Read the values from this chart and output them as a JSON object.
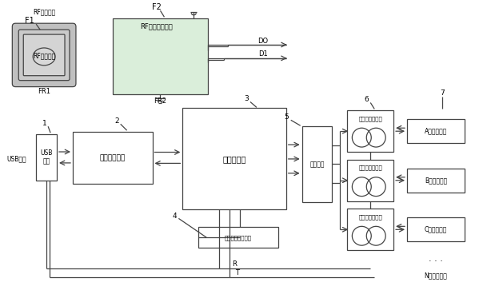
{
  "bg_color": "#ffffff",
  "line_color": "#444444",
  "box_fill": "#ffffff",
  "rf_module_fill": "#daeeda",
  "font_size": 6.5,
  "small_font": 6.0,
  "components": {
    "F1_label": "F1",
    "F1_sub": "RF射频芯片",
    "F1_id": "FR1",
    "F2_label": "F2",
    "F2_sub": "RF射频接收模块",
    "F2_id": "FR2",
    "box1_text": "USB\n接口",
    "box1_label": "1",
    "box1_side": "USB接口",
    "box2_text": "电源管理模块",
    "box2_label": "2",
    "box3_text": "系统处理器",
    "box3_label": "3",
    "box4_text": "电压异常检测模块",
    "box4_label": "4",
    "box5_text": "驱动模块",
    "box5_label": "5",
    "box6_text": "微型隔离继电器",
    "box6_label": "6",
    "box7_label": "7",
    "boxA_text": "A盘内存颗粒",
    "boxB_text": "B盘内存颗粒",
    "boxC_text": "C盘内存颗粒",
    "boxN_text": "N盘内存颗粒",
    "do_label": "DO",
    "d1_label": "D1",
    "r_label": "R",
    "t_label": "T"
  }
}
